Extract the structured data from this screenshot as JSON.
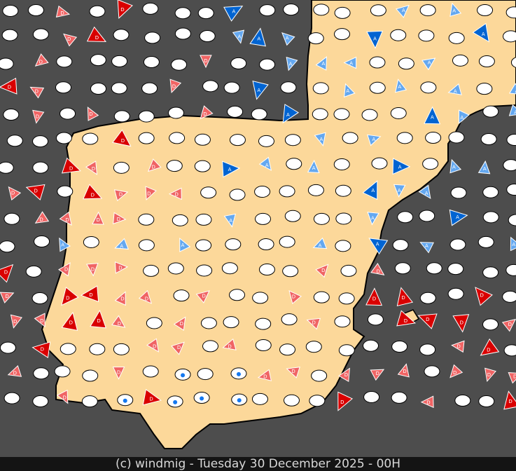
{
  "footer": {
    "text": "(c) windmig - Tuesday 30 December 2025 - 00H"
  },
  "colors": {
    "sea": "#4d4d4d",
    "land": "#fcd89a",
    "coast": "#000000",
    "onshore_strong": "#d90000",
    "onshore_light": "#f06464",
    "offshore_strong": "#0064d2",
    "offshore_light": "#64a8f0",
    "rain": "#1478f0",
    "calm": "#ffffff"
  },
  "legend_letters": {
    "red_marker": "D",
    "blue_marker": "A"
  },
  "icons": [
    "wind-arrow-icon",
    "rain-drop-icon",
    "calm-station-icon",
    "fog-icon"
  ]
}
